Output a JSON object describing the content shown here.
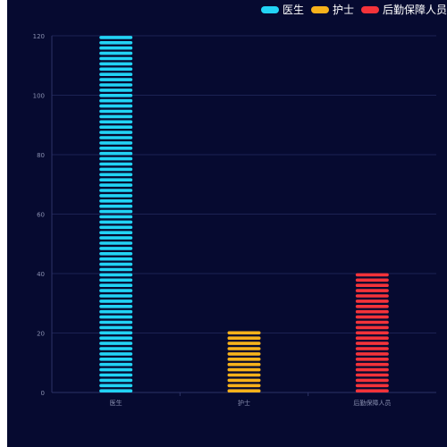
{
  "chart_data": {
    "type": "bar",
    "categories": [
      "医生",
      "护士",
      "后勤保障人员"
    ],
    "series": [
      {
        "name": "医生",
        "values": [
          120,
          null,
          null
        ],
        "color": "#22d3f5"
      },
      {
        "name": "护士",
        "values": [
          null,
          21,
          null
        ],
        "color": "#f7b21b"
      },
      {
        "name": "后勤保障人员",
        "values": [
          null,
          null,
          41
        ],
        "color": "#f4333a"
      }
    ],
    "ylim": [
      0,
      120
    ],
    "yticks": [
      0,
      20,
      40,
      60,
      80,
      100,
      120
    ],
    "grid": true,
    "legend_position": "top-right",
    "bar_style": "stacked-pills"
  },
  "colors": {
    "background": "#060a30",
    "grid": "#1c2253",
    "axis": "#2c3366",
    "tick_label": "#8a90b0"
  }
}
